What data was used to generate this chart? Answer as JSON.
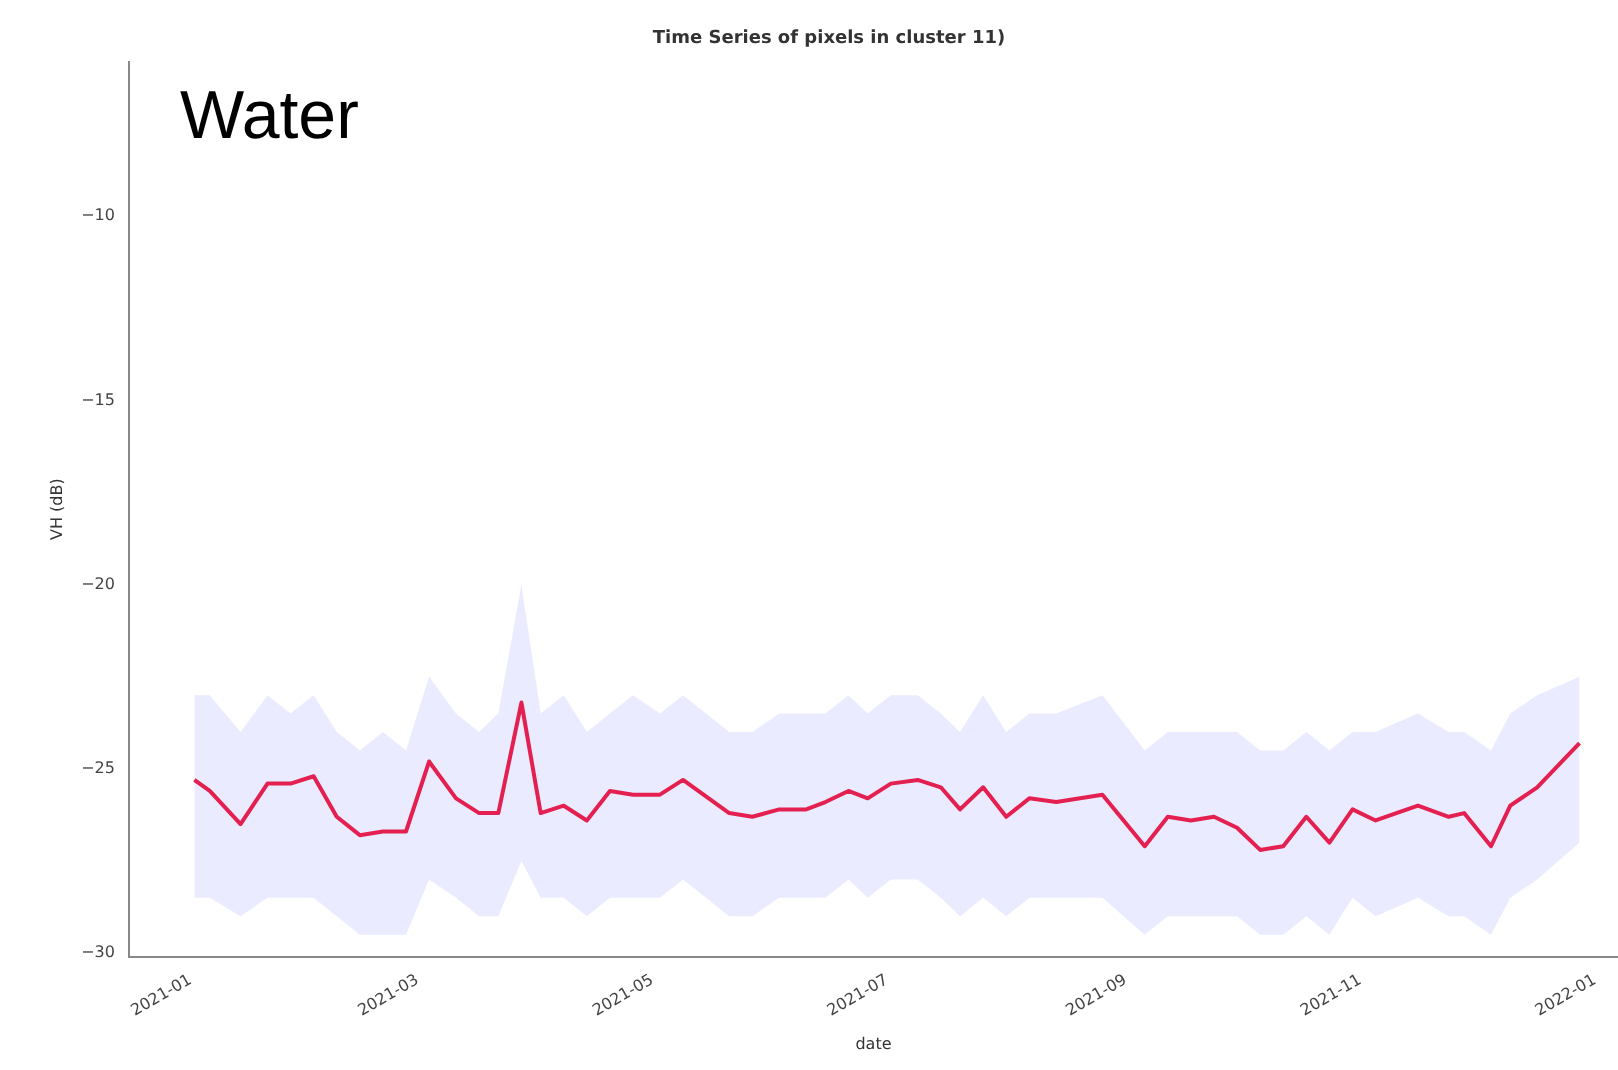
{
  "chart_data": {
    "type": "line",
    "title": "Time Series of pixels in cluster 11)",
    "xlabel": "date",
    "ylabel": "VH (dB)",
    "annotations": [
      "Water"
    ],
    "x": [
      "2021-01-02",
      "2021-01-06",
      "2021-01-14",
      "2021-01-21",
      "2021-01-27",
      "2021-02-02",
      "2021-02-08",
      "2021-02-14",
      "2021-02-20",
      "2021-02-26",
      "2021-03-04",
      "2021-03-11",
      "2021-03-17",
      "2021-03-22",
      "2021-03-28",
      "2021-04-02",
      "2021-04-08",
      "2021-04-14",
      "2021-04-20",
      "2021-04-26",
      "2021-05-03",
      "2021-05-09",
      "2021-05-21",
      "2021-05-27",
      "2021-06-03",
      "2021-06-10",
      "2021-06-15",
      "2021-06-21",
      "2021-06-26",
      "2021-07-02",
      "2021-07-09",
      "2021-07-15",
      "2021-07-20",
      "2021-07-26",
      "2021-08-01",
      "2021-08-07",
      "2021-08-14",
      "2021-08-26",
      "2021-09-06",
      "2021-09-12",
      "2021-09-18",
      "2021-09-24",
      "2021-09-30",
      "2021-10-06",
      "2021-10-12",
      "2021-10-18",
      "2021-10-24",
      "2021-10-30",
      "2021-11-05",
      "2021-11-16",
      "2021-11-24",
      "2021-11-28",
      "2021-12-05",
      "2021-12-10",
      "2021-12-17",
      "2021-12-28"
    ],
    "series": [
      {
        "color": "#e3204f",
        "values": [
          -25.3,
          -25.6,
          -26.5,
          -25.4,
          -25.4,
          -25.2,
          -26.3,
          -26.8,
          -26.7,
          -26.7,
          -24.8,
          -25.8,
          -26.2,
          -26.2,
          -23.2,
          -26.2,
          -26.0,
          -26.4,
          -25.6,
          -25.7,
          -25.7,
          -25.3,
          -26.2,
          -26.3,
          -26.1,
          -26.1,
          -25.9,
          -25.6,
          -25.8,
          -25.4,
          -25.3,
          -25.5,
          -26.1,
          -25.5,
          -26.3,
          -25.8,
          -25.9,
          -25.7,
          -27.1,
          -26.3,
          -26.4,
          -26.3,
          -26.6,
          -27.2,
          -27.1,
          -26.3,
          -27.0,
          -26.1,
          -26.4,
          -26.0,
          -26.3,
          -26.2,
          -27.1,
          -26.0,
          -25.5,
          -24.3
        ],
        "lower": [
          -28.5,
          -28.5,
          -29.0,
          -28.5,
          -28.5,
          -28.5,
          -29.0,
          -29.5,
          -29.5,
          -29.5,
          -28.0,
          -28.5,
          -29.0,
          -29.0,
          -27.5,
          -28.5,
          -28.5,
          -29.0,
          -28.5,
          -28.5,
          -28.5,
          -28.0,
          -29.0,
          -29.0,
          -28.5,
          -28.5,
          -28.5,
          -28.0,
          -28.5,
          -28.0,
          -28.0,
          -28.5,
          -29.0,
          -28.5,
          -29.0,
          -28.5,
          -28.5,
          -28.5,
          -29.5,
          -29.0,
          -29.0,
          -29.0,
          -29.0,
          -29.5,
          -29.5,
          -29.0,
          -29.5,
          -28.5,
          -29.0,
          -28.5,
          -29.0,
          -29.0,
          -29.5,
          -28.5,
          -28.0,
          -27.0
        ],
        "upper": [
          -23.0,
          -23.0,
          -24.0,
          -23.0,
          -23.5,
          -23.0,
          -24.0,
          -24.5,
          -24.0,
          -24.5,
          -22.5,
          -23.5,
          -24.0,
          -23.5,
          -20.0,
          -23.5,
          -23.0,
          -24.0,
          -23.5,
          -23.0,
          -23.5,
          -23.0,
          -24.0,
          -24.0,
          -23.5,
          -23.5,
          -23.5,
          -23.0,
          -23.5,
          -23.0,
          -23.0,
          -23.5,
          -24.0,
          -23.0,
          -24.0,
          -23.5,
          -23.5,
          -23.0,
          -24.5,
          -24.0,
          -24.0,
          -24.0,
          -24.0,
          -24.5,
          -24.5,
          -24.0,
          -24.5,
          -24.0,
          -24.0,
          -23.5,
          -24.0,
          -24.0,
          -24.5,
          -23.5,
          -23.0,
          -22.5
        ]
      }
    ],
    "xlim": [
      "2020-12-16",
      "2022-01-07"
    ],
    "xticks": [
      "2021-01",
      "2021-03",
      "2021-05",
      "2021-07",
      "2021-09",
      "2021-11",
      "2022-01"
    ],
    "ylim": [
      -30.1,
      -5.8
    ],
    "yticks": [
      -10,
      -15,
      -20,
      -25,
      -30
    ],
    "grid": false,
    "legend": false,
    "marker": "none",
    "line_style": "solid"
  }
}
